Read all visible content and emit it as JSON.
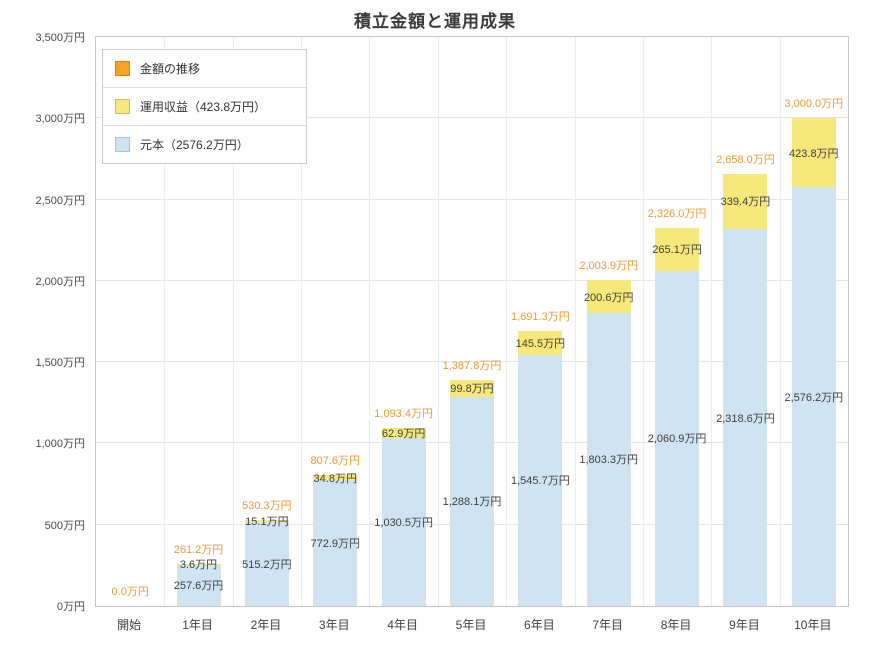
{
  "title": "積立金額と運用成果",
  "colors": {
    "total_label": "#ef9b33",
    "transition_fill": "#f5a226",
    "profit_fill": "#f7e87b",
    "principal_fill": "#cfe3f1",
    "grid": "#e4e4e4",
    "plot_border": "#c6c6c6"
  },
  "legend": [
    {
      "icon": "amount-transition-swatch",
      "label": "金額の推移",
      "color": "#f5a226",
      "border": "#d5831c"
    },
    {
      "icon": "profit-swatch",
      "label": "運用収益（423.8万円）",
      "color": "#f7e87b",
      "border": "#cfc055"
    },
    {
      "icon": "principal-swatch",
      "label": "元本（2576.2万円）",
      "color": "#cfe3f1",
      "border": "#a6c4dc"
    }
  ],
  "chart_data": {
    "type": "bar",
    "stacked": true,
    "title": "積立金額と運用成果",
    "xlabel": "",
    "ylabel": "",
    "ylim": [
      0,
      3500
    ],
    "y_tick_step": 500,
    "grid": true,
    "legend_position": "top-left",
    "categories": [
      "開始",
      "1年目",
      "2年目",
      "3年目",
      "4年目",
      "5年目",
      "6年目",
      "7年目",
      "8年目",
      "9年目",
      "10年目"
    ],
    "series": [
      {
        "name": "元本",
        "color": "#cfe3f1",
        "values": [
          0,
          257.6,
          515.2,
          772.9,
          1030.5,
          1288.1,
          1545.7,
          1803.3,
          2060.9,
          2318.6,
          2576.2
        ]
      },
      {
        "name": "運用収益",
        "color": "#f7e87b",
        "values": [
          0,
          3.6,
          15.1,
          34.8,
          62.9,
          99.8,
          145.5,
          200.6,
          265.1,
          339.4,
          423.8
        ]
      }
    ],
    "totals": [
      0,
      261.2,
      530.3,
      807.6,
      1093.4,
      1387.8,
      1691.3,
      2003.9,
      2326.0,
      2658.0,
      3000.0
    ],
    "total_labels": [
      "0.0万円",
      "261.2万円",
      "530.3万円",
      "807.6万円",
      "1,093.4万円",
      "1,387.8万円",
      "1,691.3万円",
      "2,003.9万円",
      "2,326.0万円",
      "2,658.0万円",
      "3,000.0万円"
    ],
    "profit_labels": [
      "",
      "3.6万円",
      "15.1万円",
      "34.8万円",
      "62.9万円",
      "99.8万円",
      "145.5万円",
      "200.6万円",
      "265.1万円",
      "339.4万円",
      "423.8万円"
    ],
    "principal_labels": [
      "",
      "257.6万円",
      "515.2万円",
      "772.9万円",
      "1,030.5万円",
      "1,288.1万円",
      "1,545.7万円",
      "1,803.3万円",
      "2,060.9万円",
      "2,318.6万円",
      "2,576.2万円"
    ],
    "y_ticks": [
      "3,500万円",
      "3,000万円",
      "2,500万円",
      "2,000万円",
      "1,500万円",
      "1,000万円",
      "500万円",
      "0万円"
    ]
  }
}
